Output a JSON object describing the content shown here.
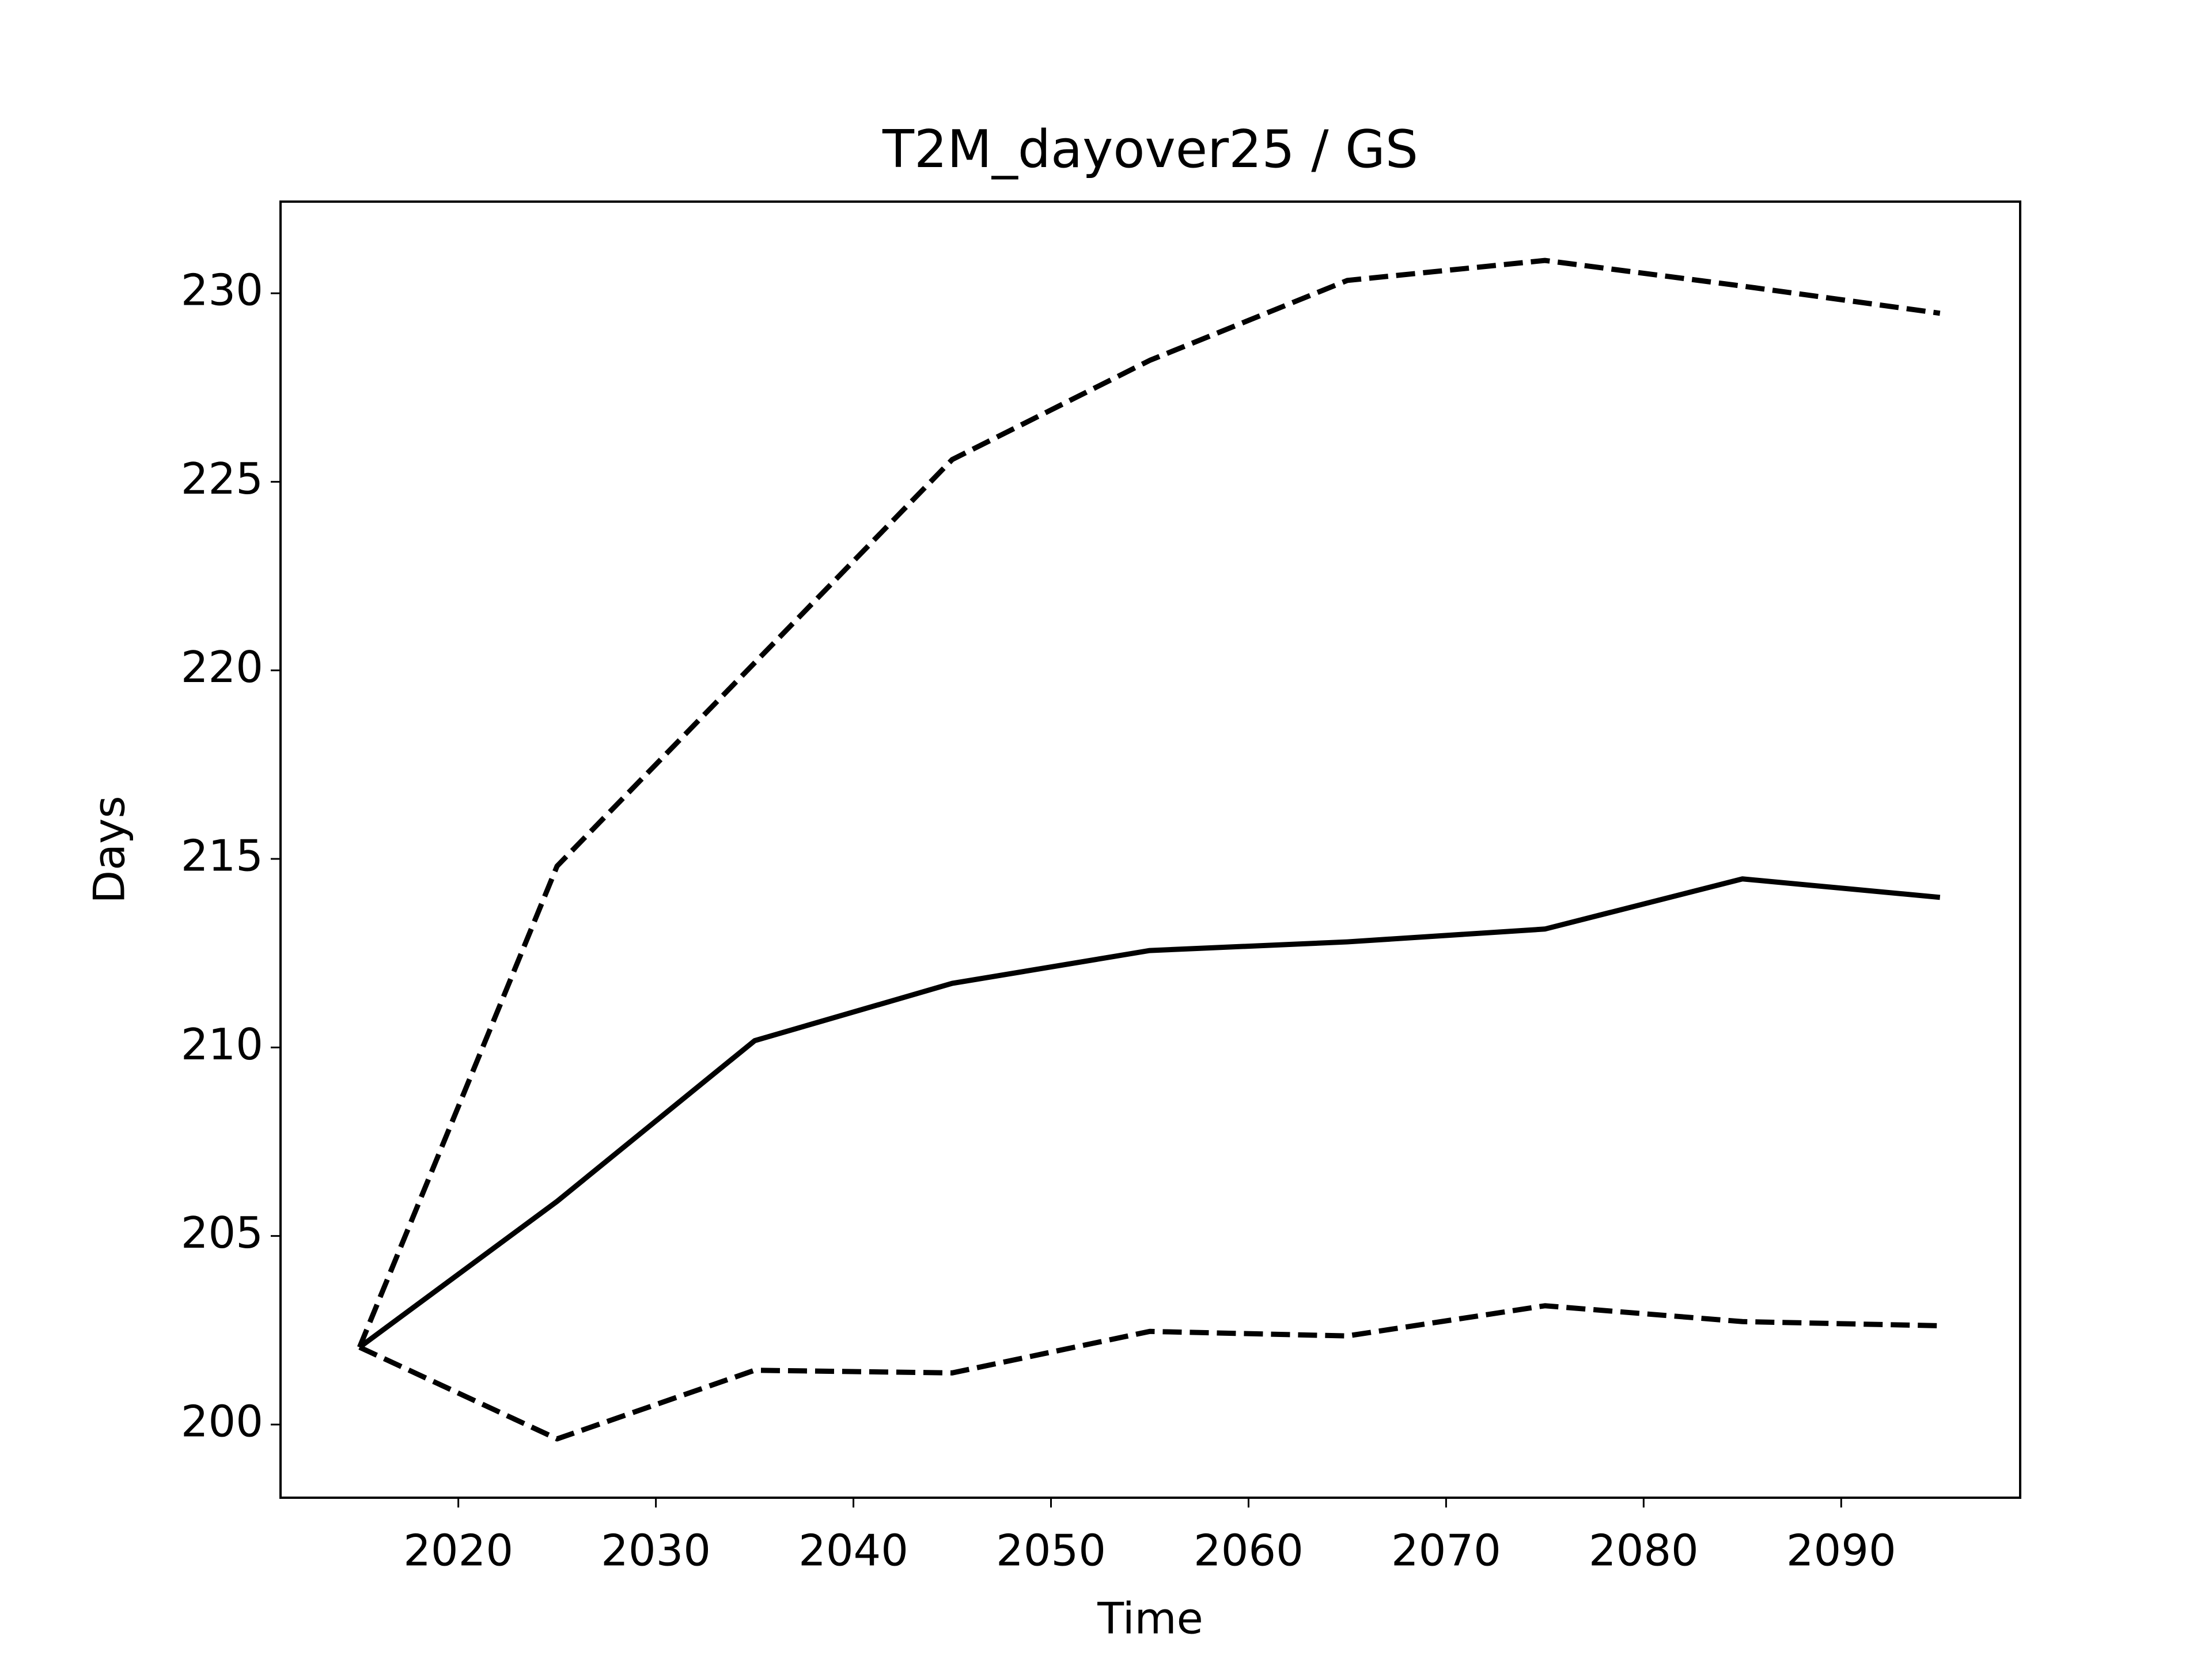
{
  "chart_data": {
    "type": "line",
    "title": "T2M_dayover25 / GS",
    "x_label": "Time",
    "y_label": "Days",
    "x": [
      2015,
      2025,
      2035,
      2045,
      2055,
      2065,
      2075,
      2085,
      2095
    ],
    "series": [
      {
        "color": "#000000",
        "style": "solid",
        "values": [
          202.05,
          205.92,
          210.18,
          211.7,
          212.57,
          212.8,
          213.14,
          214.47,
          213.98
        ]
      },
      {
        "color": "#000000",
        "style": "dashed",
        "values": [
          202.05,
          214.81,
          220.2,
          225.59,
          228.22,
          230.34,
          230.87,
          230.19,
          229.47
        ]
      },
      {
        "color": "#000000",
        "style": "dashed",
        "values": [
          202.05,
          199.62,
          201.44,
          201.37,
          202.47,
          202.35,
          203.15,
          202.73,
          202.62
        ]
      }
    ],
    "xlim": [
      2011,
      2099.06
    ],
    "ylim": [
      198.06,
      232.43
    ],
    "xticks": [
      2020,
      2030,
      2040,
      2050,
      2060,
      2070,
      2080,
      2090
    ],
    "yticks": [
      200,
      205,
      210,
      215,
      220,
      225,
      230
    ],
    "grid": false
  }
}
